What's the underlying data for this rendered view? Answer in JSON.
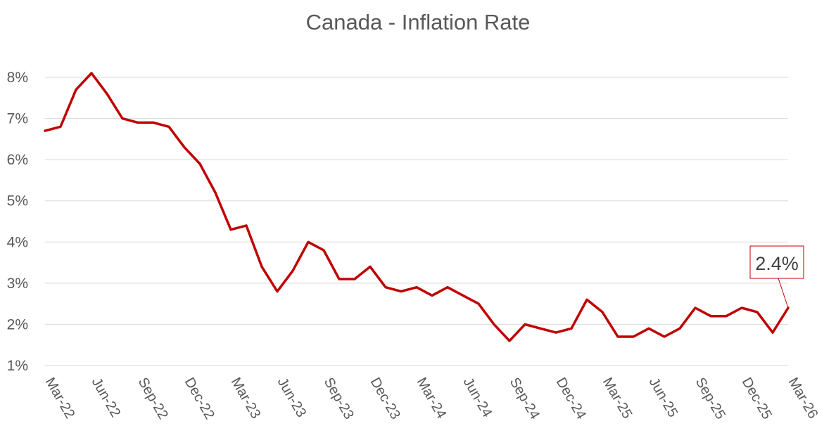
{
  "chart_data": {
    "type": "line",
    "title": "Canada - Inflation Rate",
    "xlabel": "",
    "ylabel": "",
    "ylim": [
      1,
      8
    ],
    "yticks": [
      1,
      2,
      3,
      4,
      5,
      6,
      7,
      8
    ],
    "ytick_labels": [
      "1%",
      "2%",
      "3%",
      "4%",
      "5%",
      "6%",
      "7%",
      "8%"
    ],
    "xtick_labels": [
      "Mar-22",
      "Jun-22",
      "Sep-22",
      "Dec-22",
      "Mar-23",
      "Jun-23",
      "Sep-23",
      "Dec-23",
      "Mar-24",
      "Jun-24",
      "Sep-24",
      "Dec-24",
      "Mar-25",
      "Jun-25",
      "Sep-25",
      "Dec-25",
      "Mar-26"
    ],
    "grid": true,
    "line_color": "#C00000",
    "series": [
      {
        "name": "Inflation Rate",
        "values": [
          6.7,
          6.8,
          7.7,
          8.1,
          7.6,
          7.0,
          6.9,
          6.9,
          6.8,
          6.3,
          5.9,
          5.2,
          4.3,
          4.4,
          3.4,
          2.8,
          3.3,
          4.0,
          3.8,
          3.1,
          3.1,
          3.4,
          2.9,
          2.8,
          2.9,
          2.7,
          2.9,
          2.7,
          2.5,
          2.0,
          1.6,
          2.0,
          1.9,
          1.8,
          1.9,
          2.6,
          2.3,
          1.7,
          1.7,
          1.9,
          1.7,
          1.9,
          2.4,
          2.2,
          2.2,
          2.4,
          2.3,
          1.8,
          2.4
        ]
      }
    ],
    "annotation": {
      "label": "2.4%",
      "value": 2.4,
      "point_index": 48
    }
  }
}
